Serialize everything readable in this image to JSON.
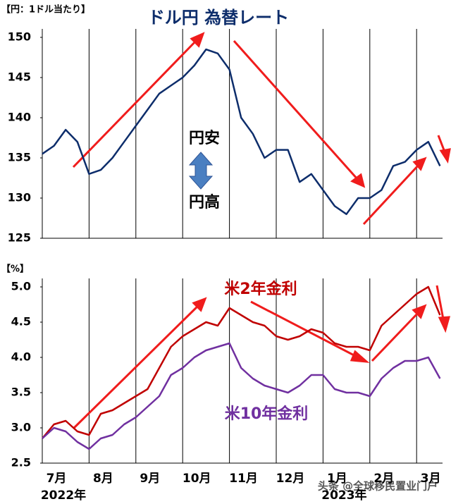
{
  "title": "ドル円 為替レート",
  "watermark": "头条 @全球移民置业门户",
  "chart_data": [
    {
      "type": "line",
      "y_label": "【円：1ドル当たり】",
      "color": "#0d2d6b",
      "annotations": [
        "円安",
        "円高"
      ],
      "values": [
        135.5,
        136.5,
        138.5,
        137,
        133,
        133.5,
        135,
        137,
        139,
        141,
        143,
        144,
        145,
        146.5,
        148.5,
        148,
        146,
        140,
        138,
        135,
        136,
        136,
        132,
        133,
        131,
        129,
        128,
        130,
        130,
        131,
        134,
        134.5,
        136,
        137,
        134
      ],
      "ylim": [
        125,
        150
      ],
      "yticks": [
        125,
        130,
        135,
        140,
        145,
        150
      ]
    },
    {
      "type": "line",
      "y_label": "【%】",
      "categories": [
        "7月",
        null,
        null,
        null,
        "8月",
        null,
        null,
        null,
        "9月",
        null,
        null,
        null,
        "10月",
        null,
        null,
        null,
        "11月",
        null,
        null,
        null,
        "12月",
        null,
        null,
        null,
        "1月",
        null,
        null,
        null,
        "2月",
        null,
        null,
        null,
        "3月",
        null,
        null
      ],
      "year_labels": [
        "2022年",
        "2023年"
      ],
      "series": [
        {
          "name": "米2年金利",
          "color": "#c00000",
          "values": [
            2.85,
            3.05,
            3.1,
            2.95,
            2.9,
            3.2,
            3.25,
            3.35,
            3.45,
            3.55,
            3.85,
            4.15,
            4.3,
            4.4,
            4.5,
            4.45,
            4.7,
            4.6,
            4.5,
            4.45,
            4.3,
            4.25,
            4.3,
            4.4,
            4.35,
            4.2,
            4.15,
            4.15,
            4.1,
            4.45,
            4.6,
            4.75,
            4.9,
            5.0,
            4.6
          ]
        },
        {
          "name": "米10年金利",
          "color": "#7030a0",
          "values": [
            2.85,
            3.0,
            2.95,
            2.8,
            2.7,
            2.85,
            2.9,
            3.05,
            3.15,
            3.3,
            3.45,
            3.75,
            3.85,
            4.0,
            4.1,
            4.15,
            4.2,
            3.85,
            3.7,
            3.6,
            3.55,
            3.5,
            3.6,
            3.75,
            3.75,
            3.55,
            3.5,
            3.5,
            3.45,
            3.7,
            3.85,
            3.95,
            3.95,
            4.0,
            3.7
          ]
        }
      ],
      "ylim": [
        2.5,
        5.0
      ],
      "yticks": [
        2.5,
        {
          "value": 3,
          "label": "3.0"
        },
        3.5,
        {
          "value": 4,
          "label": "4.0"
        },
        4.5,
        {
          "value": 5,
          "label": "5.0"
        }
      ]
    }
  ]
}
